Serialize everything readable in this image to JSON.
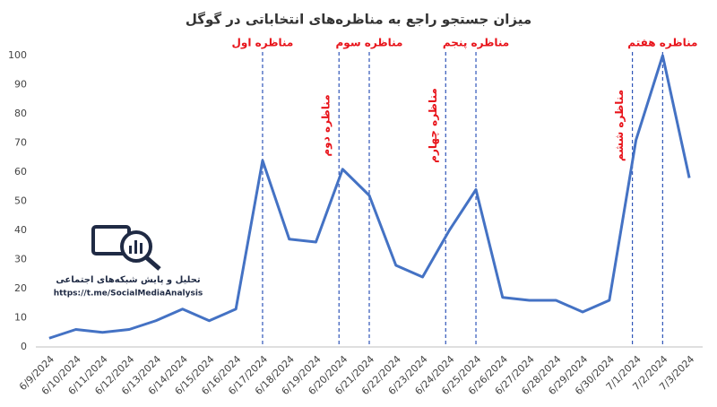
{
  "chart_data": {
    "type": "line",
    "title": "میزان جستجو راجع به مناظره‌های انتخاباتی در گوگل",
    "categories": [
      "6/9/2024",
      "6/10/2024",
      "6/11/2024",
      "6/12/2024",
      "6/13/2024",
      "6/14/2024",
      "6/15/2024",
      "6/16/2024",
      "6/17/2024",
      "6/18/2024",
      "6/19/2024",
      "6/20/2024",
      "6/21/2024",
      "6/22/2024",
      "6/23/2024",
      "6/24/2024",
      "6/25/2024",
      "6/26/2024",
      "6/27/2024",
      "6/28/2024",
      "6/29/2024",
      "6/30/2024",
      "7/1/2024",
      "7/2/2024",
      "7/3/2024"
    ],
    "values": [
      3,
      6,
      5,
      6,
      9,
      13,
      9,
      13,
      64,
      37,
      36,
      61,
      52,
      28,
      24,
      40,
      54,
      17,
      16,
      16,
      12,
      16,
      71,
      100,
      58
    ],
    "color": "#4472c4",
    "ylim": [
      0,
      100
    ],
    "yticks": [
      0,
      10,
      20,
      30,
      40,
      50,
      60,
      70,
      80,
      90,
      100
    ],
    "grid": false,
    "annotations": [
      {
        "label": "مناظره اول",
        "date": "6/17/2024",
        "orientation": "horizontal"
      },
      {
        "label": "مناظره دوم",
        "date": "6/20/2024",
        "orientation": "vertical"
      },
      {
        "label": "مناظره سوم",
        "date": "6/21/2024",
        "orientation": "horizontal"
      },
      {
        "label": "مناظره چهارم",
        "date": "6/24/2024",
        "orientation": "vertical"
      },
      {
        "label": "مناظره پنجم",
        "date": "6/25/2024",
        "orientation": "horizontal"
      },
      {
        "label": "مناظره ششم",
        "date": "7/1/2024",
        "orientation": "vertical"
      },
      {
        "label": "مناظره هفتم",
        "date": "7/2/2024",
        "orientation": "horizontal"
      }
    ]
  },
  "logo": {
    "title": "تحلیل و پایش شبکه‌های اجتماعی",
    "url": "https://t.me/SocialMediaAnalysis"
  }
}
